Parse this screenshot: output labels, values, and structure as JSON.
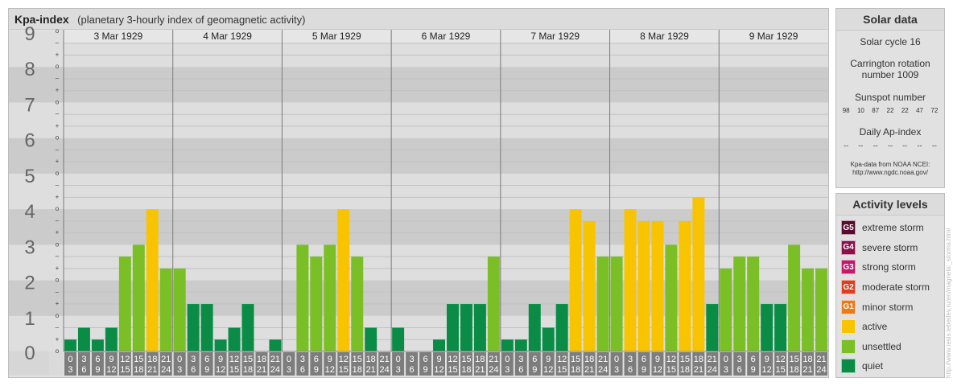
{
  "header": {
    "title": "Kpa-index",
    "subtitle": "(planetary 3-hourly index of geomagnetic activity)"
  },
  "chart_data": {
    "type": "bar",
    "title": "Kpa-index",
    "subtitle": "(planetary 3-hourly index of geomagnetic activity)",
    "ylim": [
      0,
      9
    ],
    "y_ticks": [
      "0",
      "1",
      "2",
      "3",
      "4",
      "5",
      "6",
      "7",
      "8",
      "9"
    ],
    "sub_ticks": [
      "o",
      "+",
      "–"
    ],
    "days": [
      "3 Mar 1929",
      "4 Mar 1929",
      "5 Mar 1929",
      "6 Mar 1929",
      "7 Mar 1929",
      "8 Mar 1929",
      "9 Mar 1929"
    ],
    "interval_start_labels": [
      "0",
      "3",
      "6",
      "9",
      "12",
      "15",
      "18",
      "21"
    ],
    "interval_end_labels": [
      "3",
      "6",
      "9",
      "12",
      "15",
      "18",
      "21",
      "24"
    ],
    "values": [
      [
        0.333,
        0.667,
        0.333,
        0.667,
        2.667,
        3.0,
        4.0,
        2.333
      ],
      [
        2.333,
        1.333,
        1.333,
        0.333,
        0.667,
        1.333,
        0.0,
        0.333
      ],
      [
        0.0,
        3.0,
        2.667,
        3.0,
        4.0,
        2.667,
        0.667,
        0.0
      ],
      [
        0.667,
        0.0,
        0.0,
        0.333,
        1.333,
        1.333,
        1.333,
        2.667
      ],
      [
        0.333,
        0.333,
        1.333,
        0.667,
        1.333,
        4.0,
        3.667,
        2.667
      ],
      [
        2.667,
        4.0,
        3.667,
        3.667,
        3.0,
        3.667,
        4.333,
        1.333
      ],
      [
        2.333,
        2.667,
        2.667,
        1.333,
        1.333,
        3.0,
        2.333,
        2.333
      ]
    ],
    "grid": true,
    "legend": "right"
  },
  "solar": {
    "title": "Solar data",
    "cycle": "Solar cycle 16",
    "carrington_line1": "Carrington rotation",
    "carrington_line2": "number 1009",
    "sunspot_title": "Sunspot number",
    "sunspots": [
      "98",
      "10",
      "87",
      "22",
      "22",
      "47",
      "72"
    ],
    "ap_title": "Daily Ap-index",
    "ap_values": [
      "--",
      "--",
      "--",
      "--",
      "--",
      "--",
      "--"
    ],
    "credit_line1": "Kpa-data from NOAA NCEI:",
    "credit_line2": "http://www.ngdc.noaa.gov/"
  },
  "activity": {
    "title": "Activity levels",
    "levels": [
      {
        "code": "G5",
        "label": "extreme storm",
        "color": "#5a0a2e"
      },
      {
        "code": "G4",
        "label": "severe storm",
        "color": "#8a0f4a"
      },
      {
        "code": "G3",
        "label": "strong storm",
        "color": "#c4186a"
      },
      {
        "code": "G2",
        "label": "moderate storm",
        "color": "#e03c1e"
      },
      {
        "code": "G1",
        "label": "minor storm",
        "color": "#ee7a14"
      },
      {
        "code": "",
        "label": "active",
        "color": "#f8c400"
      },
      {
        "code": "",
        "label": "unsettled",
        "color": "#7abf26"
      },
      {
        "code": "",
        "label": "quiet",
        "color": "#0a8c46"
      }
    ]
  },
  "watermark": "http://www.tesis.lebedev.ru/en/magnetic_storms.html"
}
